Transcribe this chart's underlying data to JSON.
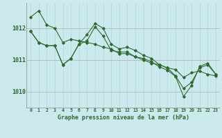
{
  "title": "Graphe pression niveau de la mer (hPa)",
  "background_color": "#cceaee",
  "grid_color_v": "#b0d8dc",
  "grid_color_h": "#c0b8c0",
  "line_color": "#2d6a2d",
  "xlim": [
    -0.5,
    23.5
  ],
  "ylim": [
    1009.5,
    1012.8
  ],
  "yticks": [
    1010,
    1011,
    1012
  ],
  "xticks": [
    0,
    1,
    2,
    3,
    4,
    5,
    6,
    7,
    8,
    9,
    10,
    11,
    12,
    13,
    14,
    15,
    16,
    17,
    18,
    19,
    20,
    21,
    22,
    23
  ],
  "series": [
    [
      1012.35,
      1012.55,
      1012.1,
      1012.0,
      1011.55,
      1011.65,
      1011.6,
      1011.55,
      1011.5,
      1011.4,
      1011.35,
      1011.2,
      1011.2,
      1011.1,
      1011.0,
      1010.9,
      1010.85,
      1010.75,
      1010.7,
      1010.45,
      1010.6,
      1010.65,
      1010.55,
      1010.5
    ],
    [
      1011.9,
      1011.55,
      1011.45,
      1011.45,
      1010.85,
      1011.05,
      1011.5,
      1011.8,
      1012.15,
      1012.0,
      1011.5,
      1011.35,
      1011.4,
      1011.3,
      1011.15,
      1011.05,
      1010.85,
      1010.75,
      1010.5,
      1010.1,
      1010.3,
      1010.75,
      1010.85,
      1010.55
    ],
    [
      1011.9,
      1011.55,
      1011.45,
      1011.45,
      1010.85,
      1011.05,
      1011.5,
      1011.6,
      1012.05,
      1011.75,
      1011.3,
      1011.25,
      1011.25,
      1011.1,
      1011.05,
      1010.95,
      1010.78,
      1010.68,
      1010.48,
      1009.85,
      1010.2,
      1010.8,
      1010.9,
      1010.55
    ]
  ]
}
